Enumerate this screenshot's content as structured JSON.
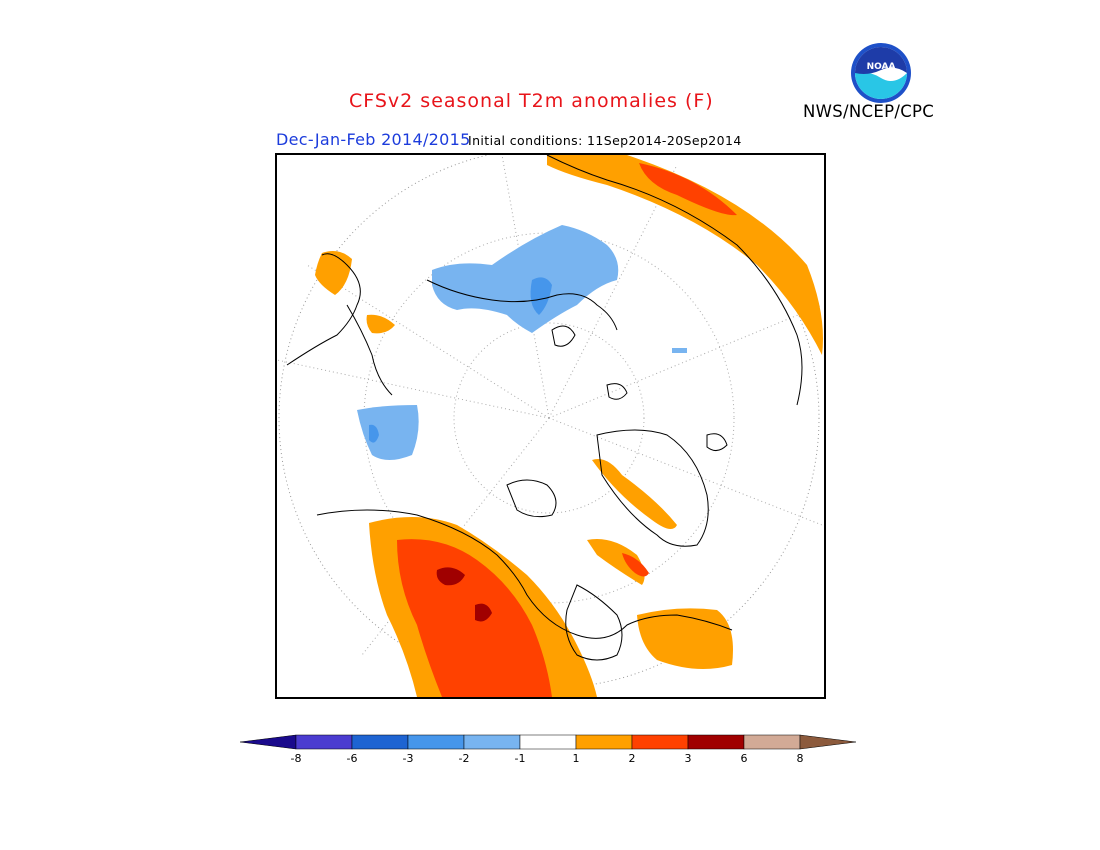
{
  "title": "CFSv2 seasonal T2m anomalies (F)",
  "subtitle": {
    "period": "Dec-Jan-Feb 2014/2015",
    "initial_conditions": "Initial conditions: 11Sep2014-20Sep2014"
  },
  "agency": "NWS/NCEP/CPC",
  "logo": {
    "text": "NOAA",
    "icon": "noaa-logo-icon"
  },
  "map": {
    "projection": "north-polar-stereographic",
    "variable": "2m temperature anomaly",
    "units": "F"
  },
  "colorbar": {
    "tick_labels": [
      "-8",
      "-6",
      "-3",
      "-2",
      "-1",
      "1",
      "2",
      "3",
      "6",
      "8"
    ],
    "bins": [
      {
        "color": "#1a0a8c"
      },
      {
        "color": "#4b3cd0"
      },
      {
        "color": "#1e64d2"
      },
      {
        "color": "#4696eb"
      },
      {
        "color": "#78b4f0"
      },
      {
        "color": "#ffffff"
      },
      {
        "color": "#ffa000"
      },
      {
        "color": "#ff4100"
      },
      {
        "color": "#a00000"
      },
      {
        "color": "#d2aa96"
      },
      {
        "color": "#8c5a3c"
      }
    ]
  }
}
